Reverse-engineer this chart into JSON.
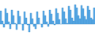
{
  "values": [
    12,
    3,
    -3,
    14,
    10,
    2,
    -4,
    13,
    8,
    1,
    -5,
    12,
    7,
    0,
    -6,
    11,
    6,
    -1,
    -7,
    10,
    5,
    -2,
    -4,
    11,
    6,
    0,
    -3,
    12,
    8,
    2,
    -2,
    13,
    9,
    3,
    -1,
    14,
    10,
    4,
    0,
    15,
    11,
    5,
    1,
    16,
    13,
    6,
    3,
    18,
    15,
    8,
    5,
    17,
    14,
    7,
    4,
    16,
    13,
    6,
    4,
    15
  ],
  "bar_color": "#5aabea",
  "edge_color": "#3a8cc8",
  "background_color": "#ffffff",
  "ylim": [
    -10,
    22
  ],
  "figsize": [
    1.2,
    0.45
  ],
  "dpi": 100
}
